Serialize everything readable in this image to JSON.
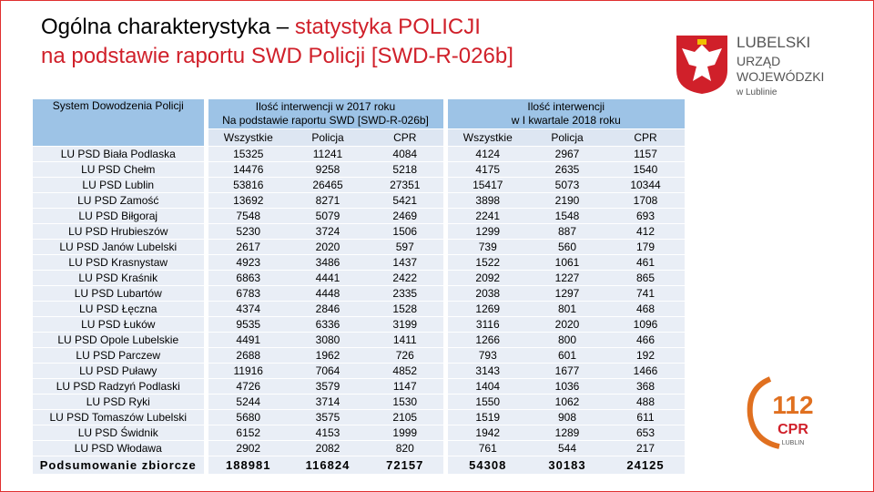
{
  "header": {
    "title_line1_black": "Ogólna charakterystyka –",
    "title_line1_red": "statystyka POLICJI",
    "title_line2": "na podstawie raportu SWD Policji [SWD-R-026b]"
  },
  "logo": {
    "lines": [
      "LUBELSKI",
      "URZĄD",
      "WOJEWÓDZKI",
      "w Lublinie"
    ]
  },
  "badge": {
    "number": "112",
    "text": "CPR",
    "sub": "LUBLIN"
  },
  "table": {
    "header": {
      "first": "System Dowodzenia Policji",
      "group1": [
        "Ilość interwencji w 2017 roku",
        "Na podstawie raportu SWD [SWD-R-026b]"
      ],
      "group2": [
        "Ilość interwencji",
        "w I kwartale 2018 roku"
      ],
      "subheaders": [
        "Wszystkie",
        "Policja",
        "CPR",
        "Wszystkie",
        "Policja",
        "CPR"
      ]
    },
    "rows": [
      [
        "LU PSD Biała Podlaska",
        15325,
        11241,
        4084,
        4124,
        2967,
        1157
      ],
      [
        "LU PSD Chełm",
        14476,
        9258,
        5218,
        4175,
        2635,
        1540
      ],
      [
        "LU PSD Lublin",
        53816,
        26465,
        27351,
        15417,
        5073,
        10344
      ],
      [
        "LU PSD Zamość",
        13692,
        8271,
        5421,
        3898,
        2190,
        1708
      ],
      [
        "LU PSD Biłgoraj",
        7548,
        5079,
        2469,
        2241,
        1548,
        693
      ],
      [
        "LU PSD Hrubieszów",
        5230,
        3724,
        1506,
        1299,
        887,
        412
      ],
      [
        "LU PSD Janów Lubelski",
        2617,
        2020,
        597,
        739,
        560,
        179
      ],
      [
        "LU PSD Krasnystaw",
        4923,
        3486,
        1437,
        1522,
        1061,
        461
      ],
      [
        "LU PSD Kraśnik",
        6863,
        4441,
        2422,
        2092,
        1227,
        865
      ],
      [
        "LU PSD Lubartów",
        6783,
        4448,
        2335,
        2038,
        1297,
        741
      ],
      [
        "LU PSD Łęczna",
        4374,
        2846,
        1528,
        1269,
        801,
        468
      ],
      [
        "LU PSD Łuków",
        9535,
        6336,
        3199,
        3116,
        2020,
        1096
      ],
      [
        "LU PSD Opole Lubelskie",
        4491,
        3080,
        1411,
        1266,
        800,
        466
      ],
      [
        "LU PSD Parczew",
        2688,
        1962,
        726,
        793,
        601,
        192
      ],
      [
        "LU PSD Puławy",
        11916,
        7064,
        4852,
        3143,
        1677,
        1466
      ],
      [
        "LU PSD Radzyń Podlaski",
        4726,
        3579,
        1147,
        1404,
        1036,
        368
      ],
      [
        "LU PSD Ryki",
        5244,
        3714,
        1530,
        1550,
        1062,
        488
      ],
      [
        "LU PSD Tomaszów Lubelski",
        5680,
        3575,
        2105,
        1519,
        908,
        611
      ],
      [
        "LU PSD Świdnik",
        6152,
        4153,
        1999,
        1942,
        1289,
        653
      ],
      [
        "LU PSD Włodawa",
        2902,
        2082,
        820,
        761,
        544,
        217
      ]
    ],
    "summary": [
      "Podsumowanie zbiorcze",
      188981,
      116824,
      72157,
      54308,
      30183,
      24125
    ]
  }
}
